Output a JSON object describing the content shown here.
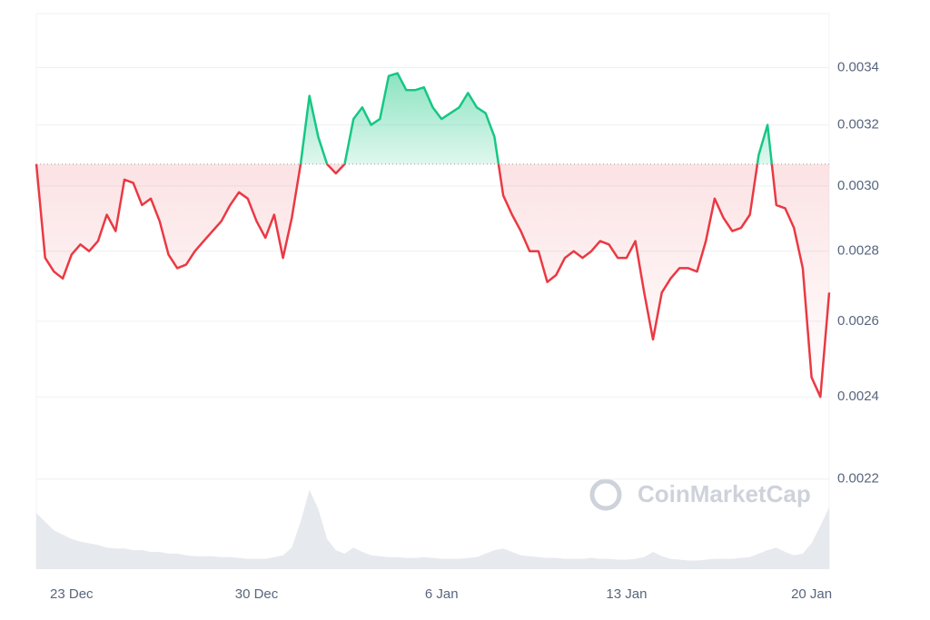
{
  "chart_data": {
    "type": "line",
    "log_scale": true,
    "grid": true,
    "watermark": "CoinMarketCap",
    "baseline": 0.00307,
    "up_color": "#16c784",
    "down_color": "#ea3943",
    "ylim": [
      0.002,
      0.0036
    ],
    "yticks": [
      0.0022,
      0.0024,
      0.0026,
      0.0028,
      {
        "value": 0.003,
        "label": "0.0030"
      },
      0.0032,
      0.0034
    ],
    "categories": [
      null,
      null,
      null,
      null,
      "23 Dec",
      null,
      null,
      null,
      null,
      null,
      null,
      null,
      null,
      null,
      null,
      null,
      null,
      null,
      null,
      null,
      null,
      null,
      null,
      null,
      null,
      "30 Dec",
      null,
      null,
      null,
      null,
      null,
      null,
      null,
      null,
      null,
      null,
      null,
      null,
      null,
      null,
      null,
      null,
      null,
      null,
      null,
      null,
      "6 Jan",
      null,
      null,
      null,
      null,
      null,
      null,
      null,
      null,
      null,
      null,
      null,
      null,
      null,
      null,
      null,
      null,
      null,
      null,
      null,
      null,
      "13 Jan",
      null,
      null,
      null,
      null,
      null,
      null,
      null,
      null,
      null,
      null,
      null,
      null,
      null,
      null,
      null,
      null,
      null,
      null,
      null,
      null,
      "20 Jan",
      null,
      null
    ],
    "values": [
      0.00307,
      0.00278,
      0.00274,
      0.00272,
      0.00279,
      0.00282,
      0.0028,
      0.00283,
      0.00291,
      0.00286,
      0.00302,
      0.00301,
      0.00294,
      0.00296,
      0.00289,
      0.00279,
      0.00275,
      0.00276,
      0.0028,
      0.00283,
      0.00286,
      0.00289,
      0.00294,
      0.00298,
      0.00296,
      0.00289,
      0.00284,
      0.00291,
      0.00278,
      0.0029,
      0.00307,
      0.0033,
      0.00316,
      0.00307,
      0.00304,
      0.00307,
      0.00322,
      0.00326,
      0.0032,
      0.00322,
      0.00337,
      0.00338,
      0.00332,
      0.00332,
      0.00333,
      0.00326,
      0.00322,
      0.00324,
      0.00326,
      0.00331,
      0.00326,
      0.00324,
      0.00316,
      0.00297,
      0.00291,
      0.00286,
      0.0028,
      0.0028,
      0.00271,
      0.00273,
      0.00278,
      0.0028,
      0.00278,
      0.0028,
      0.00283,
      0.00282,
      0.00278,
      0.00278,
      0.00283,
      0.00268,
      0.00255,
      0.00268,
      0.00272,
      0.00275,
      0.00275,
      0.00274,
      0.00283,
      0.00296,
      0.0029,
      0.00286,
      0.00287,
      0.00291,
      0.0031,
      0.0032,
      0.00294,
      0.00293,
      0.00287,
      0.00275,
      0.00245,
      0.0024,
      0.00268
    ],
    "volume": {
      "color": "#e6e9ee",
      "ylim": [
        0,
        100
      ],
      "values": [
        65,
        55,
        45,
        40,
        35,
        32,
        30,
        28,
        25,
        24,
        24,
        22,
        22,
        20,
        20,
        18,
        18,
        16,
        15,
        15,
        15,
        14,
        14,
        13,
        12,
        12,
        12,
        14,
        16,
        25,
        55,
        92,
        70,
        35,
        22,
        18,
        25,
        20,
        16,
        15,
        14,
        14,
        13,
        13,
        14,
        13,
        12,
        12,
        12,
        13,
        14,
        18,
        22,
        24,
        20,
        16,
        15,
        14,
        13,
        13,
        12,
        12,
        12,
        13,
        12,
        12,
        11,
        11,
        12,
        14,
        20,
        15,
        12,
        11,
        10,
        10,
        11,
        12,
        12,
        12,
        13,
        14,
        18,
        22,
        25,
        20,
        16,
        18,
        30,
        50,
        72
      ]
    }
  }
}
